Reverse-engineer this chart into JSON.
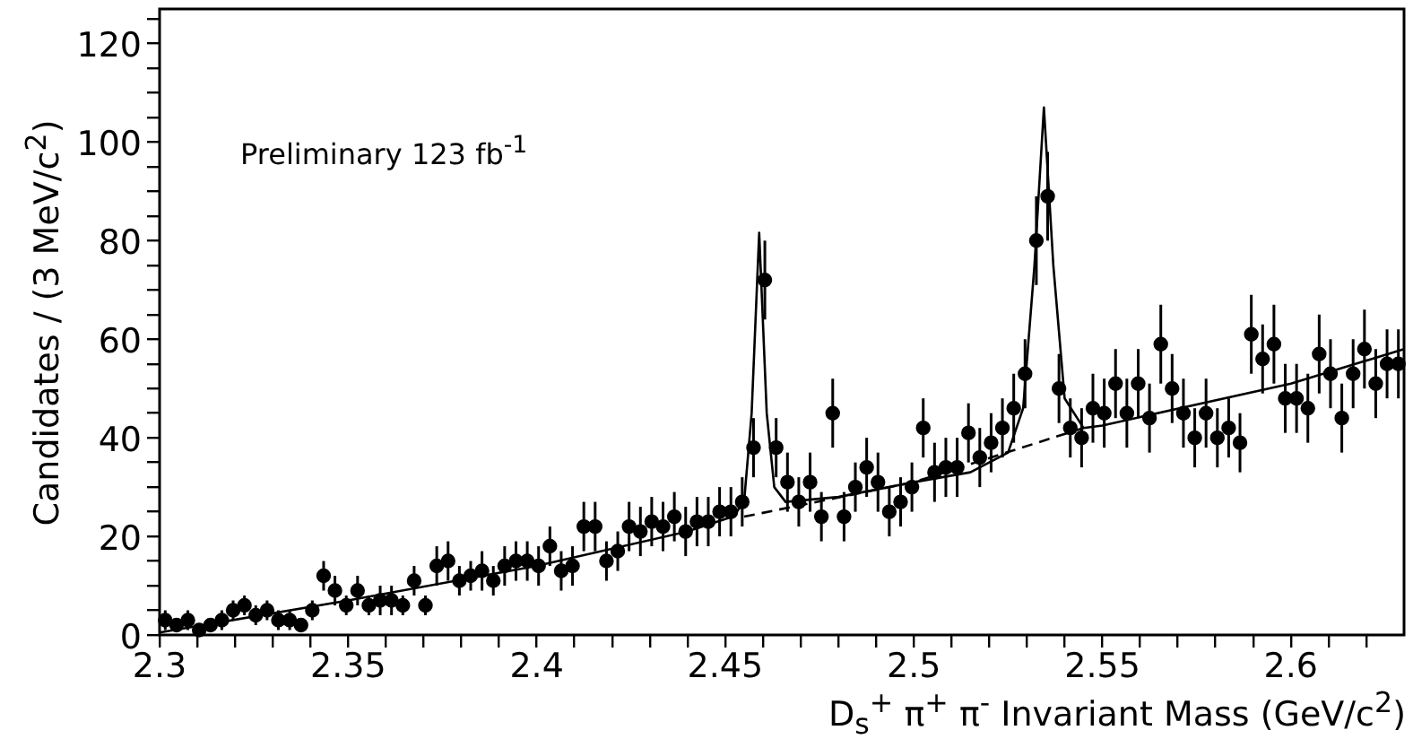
{
  "chart_data": {
    "type": "scatter",
    "xlabel": "D$_{s}$$^{+}$ π$^{+}$ π$^{-}$ Invariant Mass (GeV/c$^{2}$)",
    "ylabel": "Candidates / (3 MeV/c$^{2}$)",
    "annotations": [
      "Preliminary 123 fb$^{-1}$"
    ],
    "xlim": [
      2.3,
      2.63
    ],
    "ylim": [
      0,
      127
    ],
    "xticks": [
      2.3,
      {
        "value": 2.31,
        "label": null
      },
      {
        "value": 2.32,
        "label": null
      },
      {
        "value": 2.33,
        "label": null
      },
      {
        "value": 2.34,
        "label": null
      },
      2.35,
      {
        "value": 2.36,
        "label": null
      },
      {
        "value": 2.37,
        "label": null
      },
      {
        "value": 2.38,
        "label": null
      },
      {
        "value": 2.39,
        "label": null
      },
      2.4,
      {
        "value": 2.41,
        "label": null
      },
      {
        "value": 2.42,
        "label": null
      },
      {
        "value": 2.43,
        "label": null
      },
      {
        "value": 2.44,
        "label": null
      },
      2.45,
      {
        "value": 2.46,
        "label": null
      },
      {
        "value": 2.47,
        "label": null
      },
      {
        "value": 2.48,
        "label": null
      },
      {
        "value": 2.49,
        "label": null
      },
      2.5,
      {
        "value": 2.51,
        "label": null
      },
      {
        "value": 2.52,
        "label": null
      },
      {
        "value": 2.53,
        "label": null
      },
      {
        "value": 2.54,
        "label": null
      },
      2.55,
      {
        "value": 2.56,
        "label": null
      },
      {
        "value": 2.57,
        "label": null
      },
      {
        "value": 2.58,
        "label": null
      },
      {
        "value": 2.59,
        "label": null
      },
      2.6,
      {
        "value": 2.61,
        "label": null
      },
      {
        "value": 2.62,
        "label": null
      }
    ],
    "yticks": [
      0,
      {
        "value": 5,
        "label": null
      },
      {
        "value": 10,
        "label": null
      },
      {
        "value": 15,
        "label": null
      },
      20,
      {
        "value": 25,
        "label": null
      },
      {
        "value": 30,
        "label": null
      },
      {
        "value": 35,
        "label": null
      },
      40,
      {
        "value": 45,
        "label": null
      },
      {
        "value": 50,
        "label": null
      },
      {
        "value": 55,
        "label": null
      },
      60,
      {
        "value": 65,
        "label": null
      },
      {
        "value": 70,
        "label": null
      },
      {
        "value": 75,
        "label": null
      },
      80,
      {
        "value": 85,
        "label": null
      },
      {
        "value": 90,
        "label": null
      },
      {
        "value": 95,
        "label": null
      },
      100,
      {
        "value": 105,
        "label": null
      },
      {
        "value": 110,
        "label": null
      },
      {
        "value": 115,
        "label": null
      },
      120,
      {
        "value": 125,
        "label": null
      }
    ],
    "series": [
      {
        "type": "scatter",
        "marker": "circle",
        "color": "#000000",
        "x": [
          2.3015,
          2.3045,
          2.3075,
          2.3105,
          2.3135,
          2.3165,
          2.3195,
          2.3225,
          2.3255,
          2.3285,
          2.3315,
          2.3345,
          2.3375,
          2.3405,
          2.3435,
          2.3465,
          2.3495,
          2.3525,
          2.3555,
          2.3585,
          2.3615,
          2.3645,
          2.3675,
          2.3705,
          2.3735,
          2.3765,
          2.3795,
          2.3825,
          2.3855,
          2.3885,
          2.3915,
          2.3945,
          2.3975,
          2.4005,
          2.4035,
          2.4065,
          2.4095,
          2.4125,
          2.4155,
          2.4185,
          2.4215,
          2.4245,
          2.4275,
          2.4305,
          2.4335,
          2.4365,
          2.4395,
          2.4425,
          2.4455,
          2.4485,
          2.4515,
          2.4545,
          2.4575,
          2.4605,
          2.4635,
          2.4665,
          2.4695,
          2.4725,
          2.4755,
          2.4785,
          2.4815,
          2.4845,
          2.4875,
          2.4905,
          2.4935,
          2.4965,
          2.4995,
          2.5025,
          2.5055,
          2.5085,
          2.5115,
          2.5145,
          2.5175,
          2.5205,
          2.5235,
          2.5265,
          2.5295,
          2.5325,
          2.5355,
          2.5385,
          2.5415,
          2.5445,
          2.5475,
          2.5505,
          2.5535,
          2.5565,
          2.5595,
          2.5625,
          2.5655,
          2.5685,
          2.5715,
          2.5745,
          2.5775,
          2.5805,
          2.5835,
          2.5865,
          2.5895,
          2.5925,
          2.5955,
          2.5985,
          2.6015,
          2.6045,
          2.6075,
          2.6105,
          2.6135,
          2.6165,
          2.6195,
          2.6225,
          2.6255,
          2.6285
        ],
        "values": [
          3,
          2,
          3,
          1,
          2,
          3,
          5,
          6,
          4,
          5,
          3,
          3,
          2,
          5,
          12,
          9,
          6,
          9,
          6,
          7,
          7,
          6,
          11,
          6,
          14,
          15,
          11,
          12,
          13,
          11,
          14,
          15,
          15,
          14,
          18,
          13,
          14,
          22,
          22,
          15,
          17,
          22,
          21,
          23,
          22,
          24,
          21,
          23,
          23,
          25,
          25,
          27,
          38,
          72,
          38,
          31,
          27,
          31,
          24,
          45,
          24,
          30,
          34,
          31,
          25,
          27,
          30,
          42,
          33,
          34,
          34,
          41,
          36,
          39,
          42,
          46,
          53,
          80,
          89,
          50,
          42,
          40,
          46,
          45,
          51,
          45,
          51,
          44,
          59,
          50,
          45,
          40,
          45,
          40,
          42,
          39,
          61,
          56,
          59,
          48,
          48,
          46,
          57,
          53,
          44,
          53,
          58,
          51,
          55,
          55
        ],
        "errors": [
          2,
          1,
          2,
          1,
          1,
          2,
          2,
          2,
          2,
          2,
          2,
          2,
          1,
          2,
          3,
          3,
          2,
          3,
          2,
          3,
          3,
          2,
          3,
          2,
          4,
          4,
          3,
          3,
          4,
          3,
          4,
          4,
          4,
          4,
          4,
          4,
          4,
          5,
          5,
          4,
          4,
          5,
          5,
          5,
          5,
          5,
          5,
          5,
          5,
          5,
          5,
          5,
          6,
          8,
          6,
          6,
          5,
          6,
          5,
          7,
          5,
          5,
          6,
          6,
          5,
          5,
          5,
          6,
          6,
          6,
          6,
          6,
          6,
          6,
          6,
          7,
          7,
          9,
          9,
          7,
          6,
          6,
          7,
          7,
          7,
          7,
          7,
          7,
          8,
          7,
          7,
          6,
          7,
          6,
          6,
          6,
          8,
          7,
          8,
          7,
          7,
          7,
          8,
          7,
          7,
          7,
          8,
          7,
          7,
          7
        ]
      },
      {
        "type": "line",
        "marker": "none",
        "line_style": "solid",
        "color": "#000000",
        "x": [
          2.3,
          2.35,
          2.4,
          2.44,
          2.452,
          2.455,
          2.457,
          2.459,
          2.461,
          2.463,
          2.466,
          2.48,
          2.5,
          2.515,
          2.525,
          2.529,
          2.532,
          2.5345,
          2.537,
          2.54,
          2.545,
          2.55,
          2.6,
          2.63
        ],
        "values": [
          0.5,
          7,
          14,
          21,
          24,
          27,
          45,
          81.6,
          45,
          30,
          27,
          28,
          31,
          33,
          37,
          46,
          75,
          107,
          75,
          48,
          42,
          42.5,
          51,
          58
        ]
      },
      {
        "type": "line",
        "marker": "none",
        "line_style": "dashed",
        "color": "#000000",
        "x": [
          2.455,
          2.5,
          2.545
        ],
        "values": [
          24,
          31,
          42
        ]
      }
    ]
  }
}
